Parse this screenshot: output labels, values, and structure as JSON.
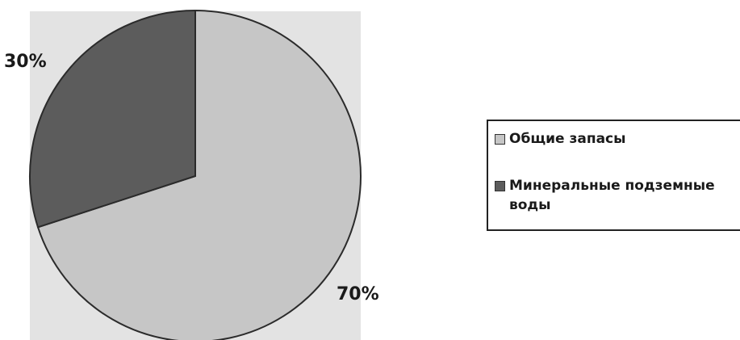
{
  "chart_data": {
    "type": "pie",
    "slices": [
      {
        "label": "Общие запасы",
        "value": 70,
        "display": "70%",
        "color": "#c6c6c6"
      },
      {
        "label": "Минеральные подземные воды",
        "value": 30,
        "display": "30%",
        "color": "#5c5c5c"
      }
    ],
    "background_color": "#e3e3e3",
    "legend_position": "right"
  }
}
